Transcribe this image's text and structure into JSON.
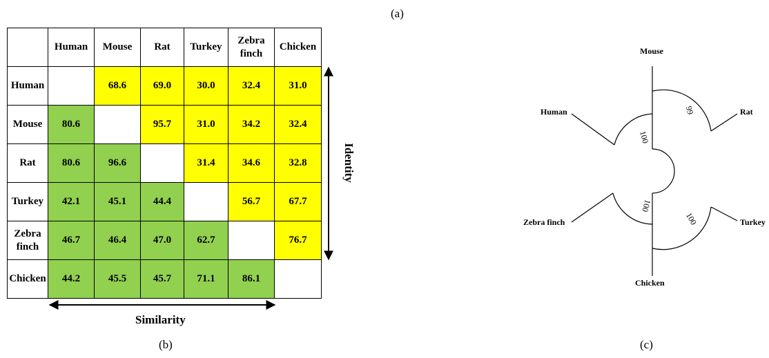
{
  "panel_labels": {
    "a": "(a)",
    "b": "(b)",
    "c": "(c)"
  },
  "matrix": {
    "header": [
      "",
      "Human",
      "Mouse",
      "Rat",
      "Turkey",
      "Zebra finch",
      "Chicken"
    ],
    "rows": [
      {
        "label": "Human",
        "cells": [
          "",
          "68.6",
          "69.0",
          "30.0",
          "32.4",
          "31.0"
        ]
      },
      {
        "label": "Mouse",
        "cells": [
          "80.6",
          "",
          "95.7",
          "31.0",
          "34.2",
          "32.4"
        ]
      },
      {
        "label": "Rat",
        "cells": [
          "80.6",
          "96.6",
          "",
          "31.4",
          "34.6",
          "32.8"
        ]
      },
      {
        "label": "Turkey",
        "cells": [
          "42.1",
          "45.1",
          "44.4",
          "",
          "56.7",
          "67.7"
        ]
      },
      {
        "label": "Zebra finch",
        "cells": [
          "46.7",
          "46.4",
          "47.0",
          "62.7",
          "",
          "76.7"
        ]
      },
      {
        "label": "Chicken",
        "cells": [
          "44.2",
          "45.5",
          "45.7",
          "71.1",
          "86.1",
          ""
        ]
      }
    ],
    "upper_color": "#ffff00",
    "lower_color": "#92d050",
    "x_axis_label": "Similarity",
    "y_axis_label": "Identity"
  },
  "tree": {
    "taxa": {
      "mouse": "Mouse",
      "rat": "Rat",
      "human": "Human",
      "zebra_finch": "Zebra finch",
      "turkey": "Turkey",
      "chicken": "Chicken"
    },
    "bootstrap": {
      "mouse_rat": "99",
      "mammals": "100",
      "birds": "100",
      "chicken_turkey": "100"
    }
  }
}
